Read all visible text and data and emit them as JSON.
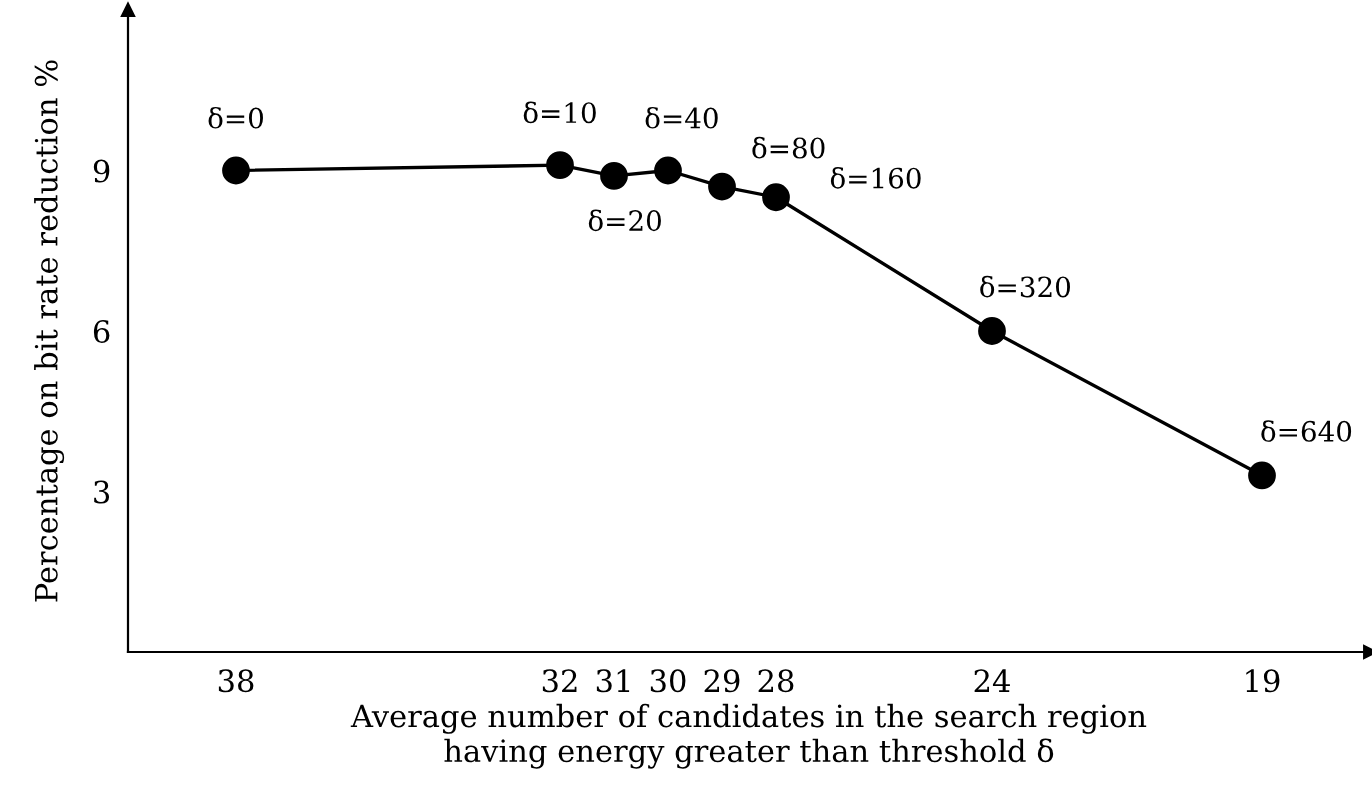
{
  "chart_data": {
    "type": "line",
    "xlabel": "Average number of candidates in the search region\nhaving energy greater than threshold δ",
    "ylabel": "Percentage on bit rate reduction %",
    "x": [
      38,
      32,
      31,
      30,
      29,
      28,
      24,
      19
    ],
    "series": [
      {
        "color": "#000000",
        "values": [
          9.0,
          9.1,
          8.9,
          9.0,
          8.7,
          8.5,
          6.0,
          3.3
        ]
      }
    ],
    "xlim": [
      40,
      17
    ],
    "xticks": [
      38,
      32,
      31,
      30,
      29,
      28,
      24,
      19
    ],
    "ylim": [
      0,
      12
    ],
    "yticks": [
      3,
      6,
      9
    ],
    "marker": "circle",
    "line_style": "solid",
    "grid": false,
    "legend": false,
    "annotations": [
      {
        "text": "δ=0",
        "x": 38,
        "y": 9.0
      },
      {
        "text": "δ=10",
        "x": 32,
        "y": 9.1
      },
      {
        "text": "δ=20",
        "x": 31,
        "y": 8.9
      },
      {
        "text": "δ=40",
        "x": 30,
        "y": 9.0
      },
      {
        "text": "δ=80",
        "x": 29,
        "y": 8.7
      },
      {
        "text": "δ=160",
        "x": 28,
        "y": 8.5
      },
      {
        "text": "δ=320",
        "x": 24,
        "y": 6.0
      },
      {
        "text": "δ=640",
        "x": 19,
        "y": 3.3
      }
    ]
  }
}
